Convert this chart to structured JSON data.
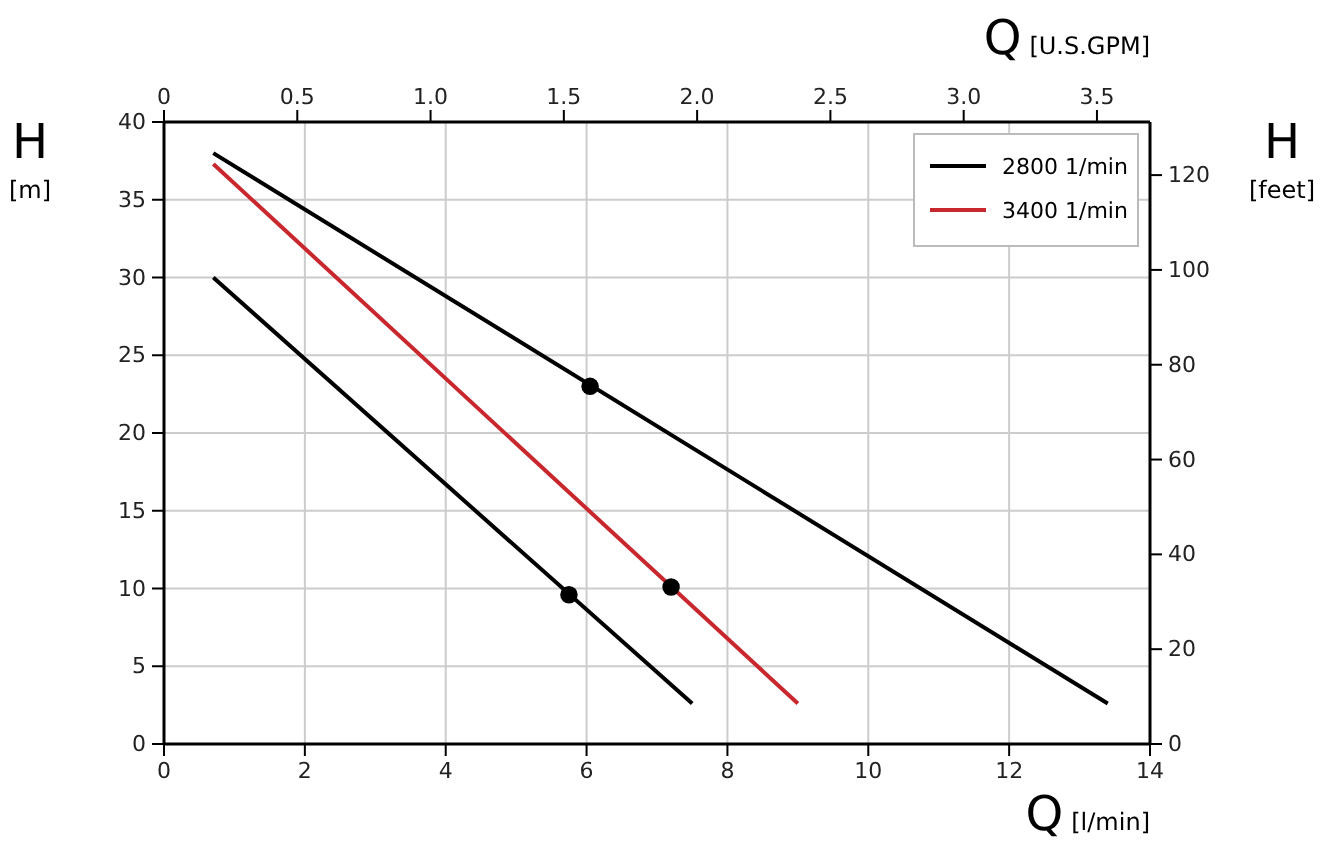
{
  "chart_data": {
    "type": "line",
    "xlabel": "Q [l/min]",
    "ylabel": "H [m]",
    "y2label": "H [feet]",
    "x2label": "Q [U.S.GPM]",
    "xlim": [
      0,
      14
    ],
    "xticks": [
      0,
      2,
      4,
      6,
      8,
      10,
      12,
      14
    ],
    "ylim": [
      0,
      40
    ],
    "yticks": [
      0,
      5,
      10,
      15,
      20,
      25,
      30,
      35,
      40
    ],
    "y2lim": [
      0,
      131.2
    ],
    "y2ticks": [
      0,
      20,
      40,
      60,
      80,
      100,
      120
    ],
    "x2lim": [
      0,
      3.699
    ],
    "x2ticks": [
      0,
      {
        "value": 0.5,
        "label": "0.5"
      },
      {
        "value": 1,
        "label": "1.0"
      },
      {
        "value": 1.5,
        "label": "1.5"
      },
      {
        "value": 2,
        "label": "2.0"
      },
      {
        "value": 2.5,
        "label": "2.5"
      },
      {
        "value": 3,
        "label": "3.0"
      },
      {
        "value": 3.5,
        "label": "3.5"
      }
    ],
    "grid": true,
    "legend": "top right",
    "marker": "none",
    "line_style": "solid",
    "series": [
      {
        "name": "2800 1/min",
        "color": "#000000",
        "x": [
          0.7,
          13.4
        ],
        "values": [
          38,
          2.6
        ]
      },
      {
        "name": "3400 1/min",
        "color": "#c8282d",
        "x": [
          0.7,
          9.0
        ],
        "values": [
          37.3,
          2.6
        ]
      },
      {
        "color": "#000000",
        "x": [
          0.7,
          7.5
        ],
        "values": [
          30,
          2.6
        ]
      },
      {
        "type": "scatter",
        "color": "#000000",
        "marker": "circle",
        "x": [
          6.05,
          5.75,
          7.2
        ],
        "values": [
          23,
          9.6,
          10.1
        ]
      }
    ]
  }
}
